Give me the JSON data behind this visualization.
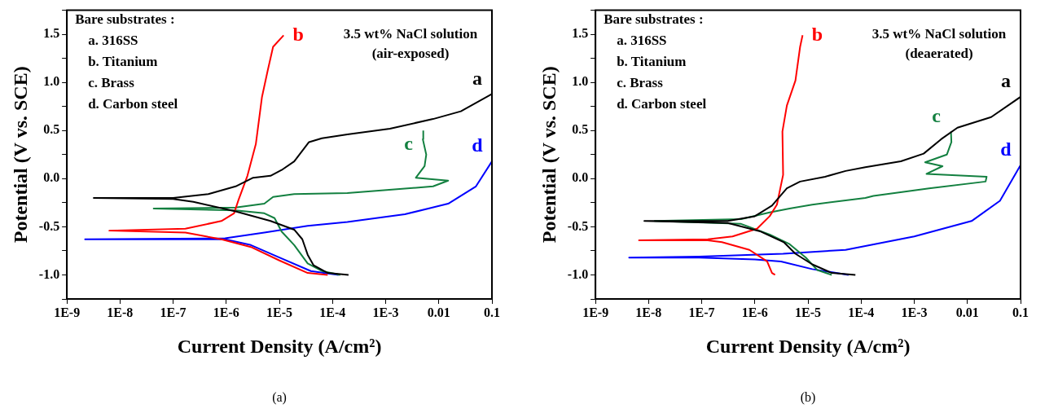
{
  "chart_data": [
    {
      "type": "line",
      "xlabel": "Current Density (A/cm²)",
      "ylabel": "Potential (V vs. SCE)",
      "log": "x",
      "xlim": [
        1e-09,
        0.1
      ],
      "ylim": [
        -1.25,
        1.75
      ],
      "xticks": [
        {
          "value": 1e-09,
          "label": "1E-9"
        },
        {
          "value": 1e-08,
          "label": "1E-8"
        },
        {
          "value": 1e-07,
          "label": "1E-7"
        },
        {
          "value": 1e-06,
          "label": "1E-6"
        },
        {
          "value": 1e-05,
          "label": "1E-5"
        },
        {
          "value": 0.0001,
          "label": "1E-4"
        },
        {
          "value": 0.001,
          "label": "1E-3"
        },
        {
          "value": 0.01,
          "label": "0.01"
        },
        {
          "value": 0.1,
          "label": "0.1"
        }
      ],
      "yticks": [
        {
          "value": -1.25,
          "label": null
        },
        {
          "value": -1,
          "label": "-1.0"
        },
        {
          "value": -0.75,
          "label": null
        },
        -0.5,
        {
          "value": -0.25,
          "label": null
        },
        {
          "value": 0,
          "label": "0.0"
        },
        {
          "value": 0.25,
          "label": null
        },
        0.5,
        {
          "value": 0.75,
          "label": null
        },
        {
          "value": 1,
          "label": "1.0"
        },
        {
          "value": 1.25,
          "label": null
        },
        1.5,
        {
          "value": 1.75,
          "label": null
        }
      ],
      "series": [
        {
          "name": "a",
          "color": "#000000",
          "x": [
            0.0002,
            8.1e-05,
            4.4e-05,
            3.4e-05,
            2.7e-05,
            1.9e-05,
            6.8e-06,
            1.5e-06,
            2.4e-07,
            1e-07,
            3.2e-09,
            1e-07,
            4.6e-07,
            1.5e-06,
            3.2e-06,
            6.8e-06,
            1.1e-05,
            1.9e-05,
            3.6e-05,
            6.3e-05,
            0.00019,
            0.0012,
            0.0078,
            0.026,
            0.1
          ],
          "values": [
            -1.0,
            -0.98,
            -0.9,
            -0.79,
            -0.63,
            -0.53,
            -0.44,
            -0.34,
            -0.24,
            -0.21,
            -0.2,
            -0.2,
            -0.16,
            -0.08,
            0.01,
            0.03,
            0.09,
            0.18,
            0.38,
            0.42,
            0.46,
            0.52,
            0.62,
            0.7,
            0.88
          ]
        },
        {
          "name": "b",
          "color": "#ff0000",
          "x": [
            8.1e-05,
            3.4e-05,
            1e-05,
            2.9e-06,
            8.1e-07,
            1.7e-07,
            6.3e-09,
            1.7e-07,
            8.1e-07,
            1.4e-06,
            1.7e-06,
            2.5e-06,
            3.6e-06,
            4.7e-06,
            6e-06,
            7.6e-06,
            1.2e-05
          ],
          "values": [
            -1.0,
            -0.98,
            -0.85,
            -0.71,
            -0.63,
            -0.56,
            -0.54,
            -0.52,
            -0.44,
            -0.36,
            -0.22,
            0.03,
            0.36,
            0.85,
            1.12,
            1.37,
            1.49
          ]
        },
        {
          "name": "c",
          "color": "#138040",
          "x": [
            0.00014,
            6.3e-05,
            3.4e-05,
            1.9e-05,
            1.1e-05,
            8.1e-06,
            5.2e-06,
            1.5e-06,
            4.3e-08,
            1.5e-06,
            5.2e-06,
            7.6e-06,
            1.9e-05,
            0.00019,
            0.0078,
            0.015,
            0.0037,
            0.0054,
            0.0058,
            0.005,
            0.0051
          ],
          "values": [
            -1.0,
            -0.96,
            -0.88,
            -0.69,
            -0.55,
            -0.41,
            -0.36,
            -0.33,
            -0.31,
            -0.3,
            -0.26,
            -0.19,
            -0.16,
            -0.15,
            -0.08,
            -0.02,
            0.01,
            0.13,
            0.25,
            0.41,
            0.5
          ]
        },
        {
          "name": "d",
          "color": "#0000ff",
          "x": [
            0.00013,
            3.9e-05,
            1e-05,
            2.9e-06,
            9.5e-07,
            2.2e-09,
            9.5e-07,
            5.2e-06,
            3.4e-05,
            0.00019,
            0.0023,
            0.015,
            0.05,
            0.1
          ],
          "values": [
            -1.0,
            -0.96,
            -0.82,
            -0.69,
            -0.63,
            -0.63,
            -0.62,
            -0.56,
            -0.49,
            -0.45,
            -0.37,
            -0.26,
            -0.08,
            0.18
          ]
        }
      ],
      "annotations": [
        "Bare substrates :",
        "a. 316SS",
        "b. Titanium",
        "c. Brass",
        "d. Carbon steel",
        "3.5 wt% NaCl solution",
        "(air-exposed)",
        "(a)"
      ]
    },
    {
      "type": "line",
      "xlabel": "Current Density (A/cm²)",
      "ylabel": "Potential (V vs. SCE)",
      "log": "x",
      "xlim": [
        1e-09,
        0.1
      ],
      "ylim": [
        -1.25,
        1.75
      ],
      "xticks": [
        {
          "value": 1e-09,
          "label": "1E-9"
        },
        {
          "value": 1e-08,
          "label": "1E-8"
        },
        {
          "value": 1e-07,
          "label": "1E-7"
        },
        {
          "value": 1e-06,
          "label": "1E-6"
        },
        {
          "value": 1e-05,
          "label": "1E-5"
        },
        {
          "value": 0.0001,
          "label": "1E-4"
        },
        {
          "value": 0.001,
          "label": "1E-3"
        },
        {
          "value": 0.01,
          "label": "0.01"
        },
        {
          "value": 0.1,
          "label": "0.1"
        }
      ],
      "yticks": [
        {
          "value": -1.25,
          "label": null
        },
        {
          "value": -1,
          "label": "-1.0"
        },
        {
          "value": -0.75,
          "label": null
        },
        -0.5,
        {
          "value": -0.25,
          "label": null
        },
        {
          "value": 0,
          "label": "0.0"
        },
        {
          "value": 0.25,
          "label": null
        },
        0.5,
        {
          "value": 0.75,
          "label": null
        },
        {
          "value": 1,
          "label": "1.0"
        },
        {
          "value": 1.25,
          "label": null
        },
        1.5,
        {
          "value": 1.75,
          "label": null
        }
      ],
      "series": [
        {
          "name": "a",
          "color": "#000000",
          "x": [
            7.8e-05,
            2.8e-05,
            1.2e-05,
            5.8e-06,
            3.5e-06,
            1.3e-06,
            3.1e-07,
            8.3e-09,
            3.1e-07,
            1e-06,
            2.1e-06,
            4e-06,
            7.1e-06,
            2.1e-05,
            5.1e-05,
            0.00012,
            0.00056,
            0.0015,
            0.0032,
            0.0065,
            0.028,
            0.1
          ],
          "values": [
            -1.0,
            -0.98,
            -0.89,
            -0.78,
            -0.66,
            -0.55,
            -0.46,
            -0.44,
            -0.44,
            -0.39,
            -0.28,
            -0.1,
            -0.03,
            0.02,
            0.08,
            0.12,
            0.18,
            0.26,
            0.41,
            0.53,
            0.64,
            0.85
          ]
        },
        {
          "name": "b",
          "color": "#ff0000",
          "x": [
            2.4e-06,
            2.1e-06,
            1.7e-06,
            7.9e-07,
            2.4e-07,
            1.3e-07,
            6.6e-09,
            1.3e-07,
            3.8e-07,
            1.1e-06,
            1.9e-06,
            2.6e-06,
            3.4e-06,
            3.3e-06,
            4e-06,
            5.8e-06,
            7.1e-06,
            7.9e-06
          ],
          "values": [
            -1.0,
            -0.98,
            -0.86,
            -0.74,
            -0.66,
            -0.64,
            -0.64,
            -0.63,
            -0.6,
            -0.52,
            -0.39,
            -0.27,
            0.04,
            0.49,
            0.76,
            1.02,
            1.37,
            1.49
          ]
        },
        {
          "name": "c",
          "color": "#138040",
          "x": [
            2.8e-05,
            1.5e-05,
            9.1e-06,
            4.5e-06,
            1.9e-06,
            5.5e-07,
            1.3e-08,
            5.5e-07,
            1.9e-06,
            4.5e-06,
            1.2e-05,
            0.00012,
            0.00017,
            0.0019,
            0.022,
            0.023,
            0.0017,
            0.0034,
            0.0016,
            0.0041,
            0.005,
            0.0049
          ],
          "values": [
            -1.0,
            -0.95,
            -0.82,
            -0.68,
            -0.58,
            -0.47,
            -0.44,
            -0.42,
            -0.35,
            -0.31,
            -0.27,
            -0.2,
            -0.18,
            -0.1,
            -0.03,
            0.02,
            0.05,
            0.13,
            0.17,
            0.25,
            0.38,
            0.49
          ]
        },
        {
          "name": "d",
          "color": "#0000ff",
          "x": [
            5.8e-05,
            1.2e-05,
            3.1e-06,
            1e-06,
            8.9e-08,
            4.3e-09,
            8.9e-08,
            3.4e-06,
            5.1e-05,
            0.001,
            0.012,
            0.041,
            0.1
          ],
          "values": [
            -1.0,
            -0.94,
            -0.86,
            -0.84,
            -0.82,
            -0.82,
            -0.81,
            -0.78,
            -0.74,
            -0.6,
            -0.44,
            -0.23,
            0.14
          ]
        }
      ],
      "annotations": [
        "Bare substrates :",
        "a. 316SS",
        "b. Titanium",
        "c. Brass",
        "d. Carbon steel",
        "3.5 wt% NaCl solution",
        "(deaerated)",
        "(b)"
      ]
    }
  ]
}
